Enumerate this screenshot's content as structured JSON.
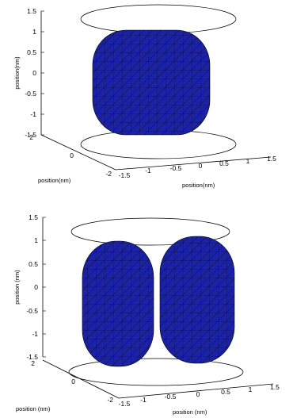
{
  "chart_data": [
    {
      "type": "surface3d",
      "zlabel": "position(nm)",
      "xlabel": "position(nm)",
      "ylabel": "position(nm)",
      "z_ticks": [
        "1.5",
        "1",
        "0.5",
        "0",
        "-0.5",
        "-1",
        "-1.5"
      ],
      "x_ticks": [
        "-1.5",
        "-1",
        "-0.5",
        "0",
        "0.5",
        "1",
        "1.5"
      ],
      "y_ticks": [
        "2",
        "0",
        "-2"
      ],
      "zlim": [
        -1.5,
        1.5
      ],
      "xlim": [
        -1.5,
        1.5
      ],
      "ylim": [
        -2,
        2
      ],
      "ring_z": [
        1.5,
        -1.5
      ],
      "surface_color": "#1c22a6",
      "mesh_color": "#000000",
      "bodies": [
        {
          "shape": "rounded-cube",
          "center_x": 0.1,
          "half_size": 0.9
        }
      ]
    },
    {
      "type": "surface3d",
      "zlabel": "position (nm)",
      "xlabel": "position (nm)",
      "ylabel": "position (nm)",
      "z_ticks": [
        "1.5",
        "1",
        "0.5",
        "0",
        "-0.5",
        "-1",
        "-1.5"
      ],
      "x_ticks": [
        "-1.5",
        "-1",
        "-0.5",
        "0",
        "0.5",
        "1",
        "1.5"
      ],
      "y_ticks": [
        "2",
        "0",
        "-2"
      ],
      "zlim": [
        -1.5,
        1.5
      ],
      "xlim": [
        -1.5,
        1.5
      ],
      "ylim": [
        -2,
        2
      ],
      "ring_z": [
        1.5,
        -1.5
      ],
      "surface_color": "#1c22a6",
      "mesh_color": "#000000",
      "bodies": [
        {
          "shape": "rounded-column",
          "center_x": -0.5,
          "half_width": 0.45,
          "half_height": 1.35
        },
        {
          "shape": "rounded-column",
          "center_x": 0.5,
          "half_width": 0.45,
          "half_height": 1.35
        }
      ]
    }
  ]
}
